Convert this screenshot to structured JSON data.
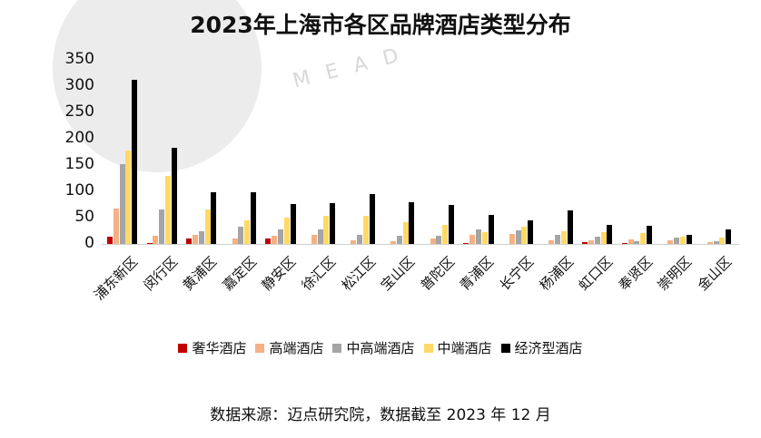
{
  "chart_data": {
    "type": "bar",
    "title": "2023年上海市各区品牌酒店类型分布",
    "xlabel": "",
    "ylabel": "",
    "ylim": [
      0,
      350
    ],
    "yticks": [
      0,
      50,
      100,
      150,
      200,
      250,
      300,
      350
    ],
    "grid": false,
    "legend_position": "bottom",
    "categories": [
      "浦东新区",
      "闵行区",
      "黄浦区",
      "嘉定区",
      "静安区",
      "徐汇区",
      "松江区",
      "宝山区",
      "普陀区",
      "青浦区",
      "长宁区",
      "杨浦区",
      "虹口区",
      "奉贤区",
      "崇明区",
      "金山区"
    ],
    "series": [
      {
        "name": "奢华酒店",
        "color": "#c00000",
        "values": [
          13,
          2,
          11,
          0,
          10,
          0,
          0,
          0,
          0,
          1,
          0,
          0,
          4,
          1,
          0,
          0
        ]
      },
      {
        "name": "高端酒店",
        "color": "#f4b183",
        "values": [
          68,
          16,
          17,
          10,
          15,
          18,
          7,
          6,
          10,
          17,
          19,
          7,
          7,
          8,
          7,
          4
        ]
      },
      {
        "name": "中高端酒店",
        "color": "#a5a5a5",
        "values": [
          152,
          66,
          24,
          33,
          27,
          28,
          18,
          15,
          15,
          27,
          26,
          17,
          13,
          6,
          12,
          5
        ]
      },
      {
        "name": "中端酒店",
        "color": "#ffd966",
        "values": [
          178,
          130,
          65,
          45,
          50,
          53,
          53,
          42,
          37,
          22,
          33,
          24,
          22,
          20,
          14,
          12
        ]
      },
      {
        "name": "经济型酒店",
        "color": "#000000",
        "values": [
          312,
          183,
          99,
          99,
          76,
          78,
          95,
          80,
          74,
          56,
          45,
          63,
          37,
          35,
          17,
          27
        ]
      }
    ]
  },
  "watermark": {
    "text": "MEAD"
  },
  "source": "数据来源：迈点研究院，数据截至 2023 年 12 月"
}
